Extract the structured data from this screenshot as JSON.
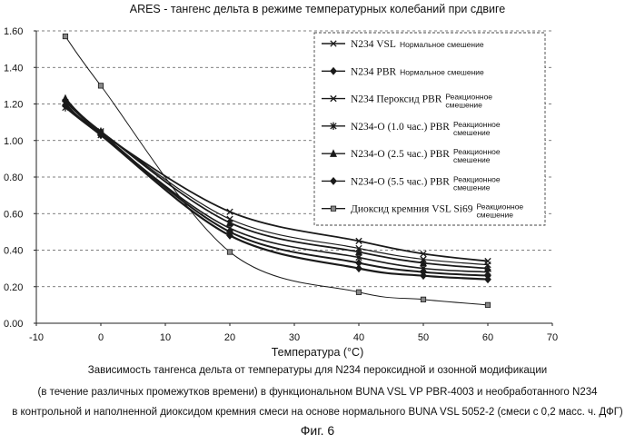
{
  "chart_data": {
    "type": "line",
    "title": "ARES - тангенс дельта в режиме температурных колебаний при сдвиге",
    "xlabel": "Температура (°С)",
    "ylabel": "",
    "xlim": [
      -10,
      70
    ],
    "ylim": [
      0.0,
      1.6
    ],
    "x_ticks": [
      "-10",
      "0",
      "10",
      "20",
      "30",
      "40",
      "50",
      "60",
      "70"
    ],
    "y_ticks": [
      "0.00",
      "0.20",
      "0.40",
      "0.60",
      "0.80",
      "1.00",
      "1.20",
      "1.40",
      "1.60"
    ],
    "grid": "horizontal dashed",
    "legend_position": "top-right",
    "series": [
      {
        "name": "N234 VSL",
        "note": "Нормальное смешение",
        "marker": "x",
        "x": [
          -5.5,
          0,
          20,
          40,
          50,
          60
        ],
        "y": [
          1.2,
          1.04,
          0.61,
          0.45,
          0.38,
          0.34
        ]
      },
      {
        "name": "N234 PBR",
        "note": "Нормальное смешение",
        "marker": "diamond",
        "x": [
          -5.5,
          0,
          20,
          40,
          50,
          60
        ],
        "y": [
          1.19,
          1.03,
          0.48,
          0.3,
          0.26,
          0.24
        ]
      },
      {
        "name": "N234 Пероксид PBR",
        "note": "Реакционное смешение",
        "marker": "x",
        "x": [
          -5.5,
          0,
          20,
          40,
          50,
          60
        ],
        "y": [
          1.21,
          1.05,
          0.57,
          0.41,
          0.35,
          0.32
        ]
      },
      {
        "name": "N234-O (1.0 час.) PBR",
        "note": "Реакционное смешение",
        "marker": "star",
        "x": [
          -5.5,
          0,
          20,
          40,
          50,
          60
        ],
        "y": [
          1.18,
          1.03,
          0.52,
          0.36,
          0.3,
          0.28
        ]
      },
      {
        "name": "N234-O (2.5 час.) PBR",
        "note": "Реакционное смешение",
        "marker": "triangle",
        "x": [
          -5.5,
          0,
          20,
          40,
          50,
          60
        ],
        "y": [
          1.23,
          1.05,
          0.55,
          0.39,
          0.33,
          0.3
        ]
      },
      {
        "name": "N234-O (5.5 час.) PBR",
        "note": "Реакционное смешение",
        "marker": "diamond",
        "x": [
          -5.5,
          0,
          20,
          40,
          50,
          60
        ],
        "y": [
          1.22,
          1.04,
          0.5,
          0.33,
          0.28,
          0.26
        ]
      },
      {
        "name": "Диоксид кремния VSL Si69",
        "note": "Реакционное смешение",
        "marker": "square",
        "x": [
          -5.5,
          0,
          20,
          40,
          50,
          60
        ],
        "y": [
          1.57,
          1.3,
          0.39,
          0.17,
          0.13,
          0.1
        ]
      }
    ]
  },
  "caption": {
    "line1": "Зависимость тангенса дельта от температуры для N234 пероксидной и озонной модификации",
    "line2": "(в течение различных промежутков времени) в функциональном BUNA VSL VP PBR-4003 и необработанного N234",
    "line3": "в контрольной и наполненной диоксидом кремния смеси на основе нормального BUNA VSL 5052-2 (смеси с 0,2 масс. ч. ДФГ)",
    "figure": "Фиг. 6"
  },
  "colors": {
    "line": "#1a1a1a",
    "grid": "#555555",
    "background": "#ffffff"
  }
}
